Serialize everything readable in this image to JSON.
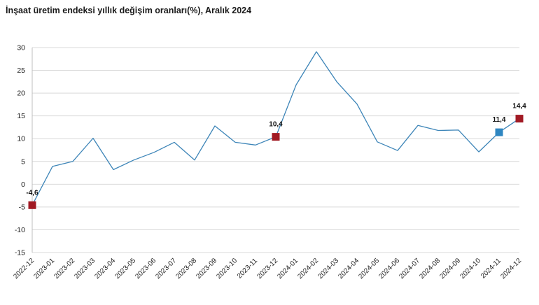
{
  "chart_data": {
    "type": "line",
    "title": "İnşaat üretim endeksi yıllık değişim oranları(%), Aralık 2024",
    "xlabel": "",
    "ylabel": "",
    "ylim": [
      -15,
      30
    ],
    "yticks": [
      30,
      25,
      20,
      15,
      10,
      5,
      0,
      -5,
      -10,
      -15
    ],
    "grid": true,
    "legend": "none",
    "categories": [
      "2022-12",
      "2023-01",
      "2023-02",
      "2023-03",
      "2023-04",
      "2023-05",
      "2023-06",
      "2023-07",
      "2023-08",
      "2023-09",
      "2023-10",
      "2023-11",
      "2023-12",
      "2024-01",
      "2024-02",
      "2024-03",
      "2024-04",
      "2024-05",
      "2024-06",
      "2024-07",
      "2024-08",
      "2024-09",
      "2024-10",
      "2024-11",
      "2024-12"
    ],
    "series": [
      {
        "values": [
          -4.6,
          3.9,
          5.0,
          10.1,
          3.2,
          5.3,
          7.0,
          9.2,
          5.3,
          12.8,
          9.2,
          8.6,
          10.4,
          21.8,
          29.1,
          22.5,
          17.6,
          9.3,
          7.4,
          12.9,
          11.8,
          11.9,
          7.1,
          11.4,
          14.4
        ],
        "color": "#3d85b8"
      }
    ],
    "highlights": [
      {
        "category": "2022-12",
        "label": "-4,6",
        "color": "#a11a24"
      },
      {
        "category": "2023-12",
        "label": "10,4",
        "color": "#a11a24"
      },
      {
        "category": "2024-11",
        "label": "11,4",
        "color": "#2e86c1"
      },
      {
        "category": "2024-12",
        "label": "14,4",
        "color": "#a11a24"
      }
    ],
    "colors": {
      "line": "#3d85b8",
      "grid": "#d9d9d9",
      "axis": "#bfbfbf"
    }
  }
}
